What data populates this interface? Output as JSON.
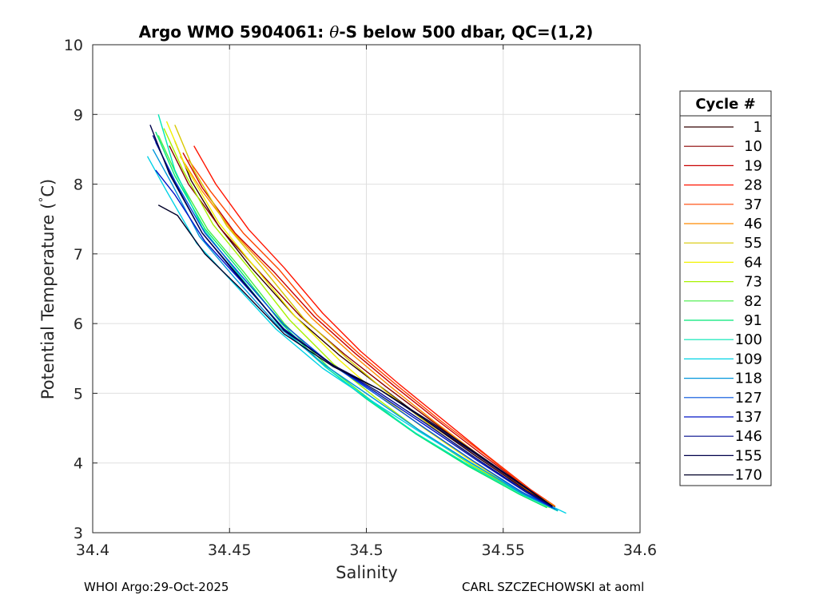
{
  "chart_data": {
    "type": "line",
    "title_parts": [
      "Argo WMO 5904061: ",
      "θ",
      "-S below 500 dbar,  QC=(1,2)"
    ],
    "xlabel": "Salinity",
    "ylabel": "Potential Temperature (",
    "ylabel_degree": "°",
    "ylabel_unit": "C)",
    "xlim": [
      34.4,
      34.6
    ],
    "ylim": [
      3,
      10
    ],
    "x_ticks": [
      "34.4",
      "34.45",
      "34.5",
      "34.55",
      "34.6"
    ],
    "y_ticks": [
      "3",
      "4",
      "5",
      "6",
      "7",
      "8",
      "9",
      "10"
    ],
    "grid": true,
    "legend_title": "Cycle #",
    "legend_position": "right",
    "series": [
      {
        "name": "1",
        "color": "#300000",
        "x": [
          34.43,
          34.436,
          34.446,
          34.458,
          34.474,
          34.49,
          34.505,
          34.522,
          34.54,
          34.558,
          34.568
        ],
        "y": [
          8.62,
          8.05,
          7.4,
          6.8,
          6.1,
          5.55,
          5.1,
          4.6,
          4.1,
          3.62,
          3.38
        ]
      },
      {
        "name": "10",
        "color": "#8c0000",
        "x": [
          34.428,
          34.435,
          34.447,
          34.46,
          34.476,
          34.492,
          34.507,
          34.524,
          34.541,
          34.559,
          34.569
        ],
        "y": [
          8.55,
          8.0,
          7.35,
          6.78,
          6.1,
          5.56,
          5.1,
          4.6,
          4.1,
          3.61,
          3.37
        ]
      },
      {
        "name": "19",
        "color": "#c80000",
        "x": [
          34.433,
          34.44,
          34.452,
          34.466,
          34.481,
          34.496,
          34.51,
          34.526,
          34.543,
          34.56,
          34.569
        ],
        "y": [
          8.45,
          7.95,
          7.3,
          6.75,
          6.1,
          5.57,
          5.11,
          4.61,
          4.1,
          3.61,
          3.38
        ]
      },
      {
        "name": "28",
        "color": "#ff1400",
        "x": [
          34.437,
          34.445,
          34.457,
          34.47,
          34.484,
          34.498,
          34.512,
          34.528,
          34.544,
          34.56,
          34.569
        ],
        "y": [
          8.55,
          8.0,
          7.35,
          6.8,
          6.15,
          5.6,
          5.13,
          4.62,
          4.11,
          3.62,
          3.38
        ]
      },
      {
        "name": "37",
        "color": "#ff4400",
        "x": [
          34.435,
          34.443,
          34.455,
          34.468,
          34.482,
          34.497,
          34.511,
          34.527,
          34.544,
          34.56,
          34.569
        ],
        "y": [
          8.35,
          7.9,
          7.3,
          6.78,
          6.12,
          5.58,
          5.12,
          4.61,
          4.1,
          3.61,
          3.38
        ]
      },
      {
        "name": "46",
        "color": "#ff8a00",
        "x": [
          34.432,
          34.44,
          34.452,
          34.465,
          34.48,
          34.495,
          34.509,
          34.525,
          34.542,
          34.559,
          34.569
        ],
        "y": [
          8.4,
          7.9,
          7.28,
          6.74,
          6.08,
          5.55,
          5.09,
          4.59,
          4.09,
          3.61,
          3.38
        ]
      },
      {
        "name": "55",
        "color": "#d8c800",
        "x": [
          34.43,
          34.437,
          34.449,
          34.462,
          34.477,
          34.493,
          34.507,
          34.523,
          34.54,
          34.558,
          34.568
        ],
        "y": [
          8.85,
          8.2,
          7.4,
          6.8,
          6.08,
          5.5,
          5.03,
          4.55,
          4.05,
          3.59,
          3.37
        ]
      },
      {
        "name": "64",
        "color": "#f2f200",
        "x": [
          34.427,
          34.434,
          34.446,
          34.459,
          34.474,
          34.49,
          34.504,
          34.521,
          34.539,
          34.557,
          34.567
        ],
        "y": [
          8.9,
          8.25,
          7.45,
          6.82,
          6.1,
          5.48,
          5.0,
          4.5,
          4.01,
          3.57,
          3.36
        ]
      },
      {
        "name": "73",
        "color": "#a8f200",
        "x": [
          34.426,
          34.433,
          34.444,
          34.457,
          34.472,
          34.488,
          34.503,
          34.52,
          34.538,
          34.557,
          34.567
        ],
        "y": [
          8.8,
          8.2,
          7.42,
          6.8,
          6.05,
          5.42,
          4.95,
          4.45,
          3.98,
          3.56,
          3.36
        ]
      },
      {
        "name": "82",
        "color": "#44ee44",
        "x": [
          34.424,
          34.431,
          34.442,
          34.455,
          34.47,
          34.486,
          34.501,
          34.518,
          34.537,
          34.556,
          34.566
        ],
        "y": [
          8.7,
          8.1,
          7.35,
          6.75,
          6.0,
          5.38,
          4.92,
          4.42,
          3.96,
          3.55,
          3.36
        ]
      },
      {
        "name": "91",
        "color": "#00e678",
        "x": [
          34.423,
          34.43,
          34.441,
          34.454,
          34.469,
          34.485,
          34.5,
          34.518,
          34.537,
          34.556,
          34.566
        ],
        "y": [
          8.75,
          8.12,
          7.36,
          6.75,
          6.0,
          5.38,
          4.92,
          4.42,
          3.96,
          3.55,
          3.36
        ]
      },
      {
        "name": "100",
        "color": "#00e6b4",
        "x": [
          34.424,
          34.43,
          34.44,
          34.453,
          34.468,
          34.485,
          34.5,
          34.518,
          34.537,
          34.557,
          34.57
        ],
        "y": [
          9.0,
          8.2,
          7.38,
          6.72,
          5.98,
          5.38,
          4.93,
          4.43,
          3.98,
          3.55,
          3.31
        ]
      },
      {
        "name": "109",
        "color": "#00d2e6",
        "x": [
          34.42,
          34.427,
          34.438,
          34.451,
          34.467,
          34.484,
          34.5,
          34.519,
          34.538,
          34.558,
          34.573
        ],
        "y": [
          8.4,
          7.9,
          7.15,
          6.6,
          5.92,
          5.36,
          4.94,
          4.46,
          4.0,
          3.56,
          3.28
        ]
      },
      {
        "name": "118",
        "color": "#0096dc",
        "x": [
          34.422,
          34.429,
          34.439,
          34.452,
          34.468,
          34.485,
          34.501,
          34.519,
          34.538,
          34.557,
          34.57
        ],
        "y": [
          8.5,
          8.0,
          7.25,
          6.65,
          5.95,
          5.4,
          4.97,
          4.48,
          4.01,
          3.56,
          3.32
        ]
      },
      {
        "name": "127",
        "color": "#0050dc",
        "x": [
          34.423,
          34.43,
          34.441,
          34.454,
          34.47,
          34.487,
          34.503,
          34.521,
          34.539,
          34.557,
          34.569
        ],
        "y": [
          8.6,
          8.05,
          7.3,
          6.7,
          5.98,
          5.42,
          5.0,
          4.51,
          4.03,
          3.58,
          3.34
        ]
      },
      {
        "name": "137",
        "color": "#0014c8",
        "x": [
          34.423,
          34.43,
          34.441,
          34.454,
          34.47,
          34.488,
          34.504,
          34.522,
          34.54,
          34.558,
          34.568
        ],
        "y": [
          8.2,
          7.85,
          7.18,
          6.62,
          5.92,
          5.4,
          5.0,
          4.53,
          4.05,
          3.59,
          3.36
        ]
      },
      {
        "name": "146",
        "color": "#000a8c",
        "x": [
          34.422,
          34.429,
          34.44,
          34.453,
          34.469,
          34.487,
          34.504,
          34.522,
          34.54,
          34.558,
          34.568
        ],
        "y": [
          8.7,
          8.1,
          7.3,
          6.68,
          5.95,
          5.42,
          5.03,
          4.56,
          4.07,
          3.6,
          3.37
        ]
      },
      {
        "name": "155",
        "color": "#00004b",
        "x": [
          34.421,
          34.428,
          34.44,
          34.454,
          34.47,
          34.488,
          34.505,
          34.523,
          34.541,
          34.559,
          34.568
        ],
        "y": [
          8.85,
          8.15,
          7.3,
          6.65,
          5.9,
          5.4,
          5.05,
          4.58,
          4.1,
          3.62,
          3.38
        ]
      },
      {
        "name": "170",
        "color": "#000028",
        "x": [
          34.424,
          34.431,
          34.441,
          34.454,
          34.47,
          34.488,
          34.505,
          34.523,
          34.541,
          34.559,
          34.568
        ],
        "y": [
          7.7,
          7.55,
          7.0,
          6.5,
          5.85,
          5.38,
          5.05,
          4.6,
          4.12,
          3.63,
          3.38
        ]
      }
    ]
  },
  "footer": {
    "left": "WHOI Argo:29-Oct-2025",
    "right": "CARL SZCZECHOWSKI at aoml"
  }
}
